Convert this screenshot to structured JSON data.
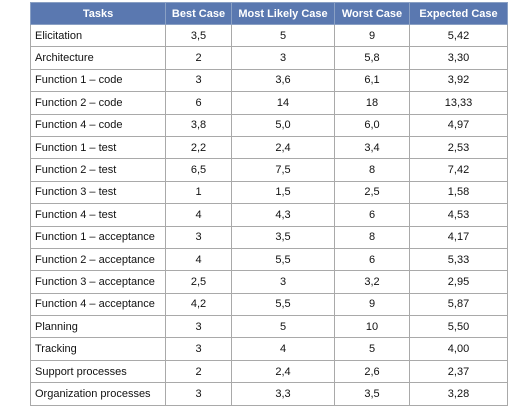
{
  "header_color": "#5a78b0",
  "columns": [
    "Tasks",
    "Best Case",
    "Most Likely Case",
    "Worst Case",
    "Expected Case"
  ],
  "rows": [
    [
      "Elicitation",
      "3,5",
      "5",
      "9",
      "5,42"
    ],
    [
      "Architecture",
      "2",
      "3",
      "5,8",
      "3,30"
    ],
    [
      "Function 1 – code",
      "3",
      "3,6",
      "6,1",
      "3,92"
    ],
    [
      "Function 2 – code",
      "6",
      "14",
      "18",
      "13,33"
    ],
    [
      "Function 4 – code",
      "3,8",
      "5,0",
      "6,0",
      "4,97"
    ],
    [
      "Function 1 – test",
      "2,2",
      "2,4",
      "3,4",
      "2,53"
    ],
    [
      "Function 2 – test",
      "6,5",
      "7,5",
      "8",
      "7,42"
    ],
    [
      "Function 3 – test",
      "1",
      "1,5",
      "2,5",
      "1,58"
    ],
    [
      "Function 4 – test",
      "4",
      "4,3",
      "6",
      "4,53"
    ],
    [
      "Function 1 – acceptance",
      "3",
      "3,5",
      "8",
      "4,17"
    ],
    [
      "Function 2 – acceptance",
      "4",
      "5,5",
      "6",
      "5,33"
    ],
    [
      "Function 3 – acceptance",
      "2,5",
      "3",
      "3,2",
      "2,95"
    ],
    [
      "Function 4 – acceptance",
      "4,2",
      "5,5",
      "9",
      "5,87"
    ],
    [
      "Planning",
      "3",
      "5",
      "10",
      "5,50"
    ],
    [
      "Tracking",
      "3",
      "4",
      "5",
      "4,00"
    ],
    [
      "Support processes",
      "2",
      "2,4",
      "2,6",
      "2,37"
    ],
    [
      "Organization processes",
      "3",
      "3,3",
      "3,5",
      "3,28"
    ]
  ]
}
